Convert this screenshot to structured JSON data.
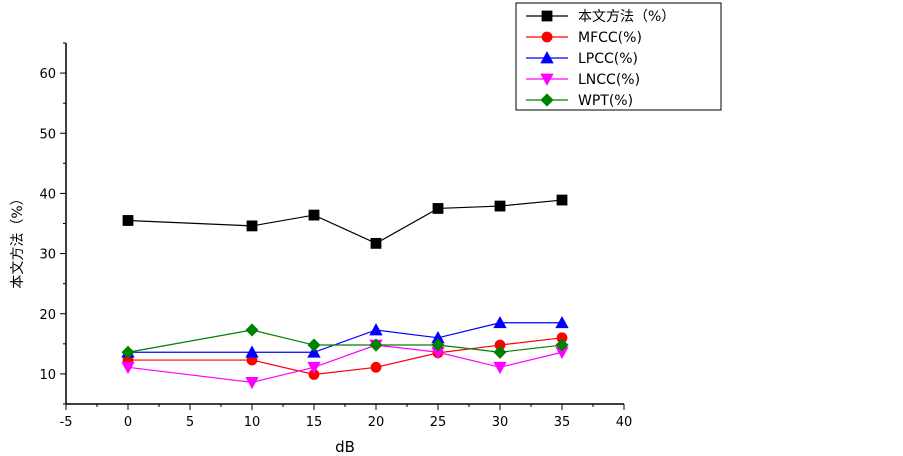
{
  "chart_data": {
    "type": "line",
    "title": "",
    "xlabel": "dB",
    "ylabel": "本文方法（%）",
    "xlim": [
      -5,
      40
    ],
    "ylim": [
      5,
      65
    ],
    "xticks": [
      -5,
      0,
      5,
      10,
      15,
      20,
      25,
      30,
      35,
      40
    ],
    "yticks": [
      10,
      20,
      30,
      40,
      50,
      60
    ],
    "grid": false,
    "legend_position": "top-right",
    "x": [
      0,
      10,
      15,
      20,
      25,
      30,
      35
    ],
    "series": [
      {
        "name": "本文方法（%）",
        "color": "#000000",
        "marker": "square",
        "values": [
          35.5,
          34.6,
          36.4,
          31.7,
          37.5,
          37.9,
          38.9
        ]
      },
      {
        "name": "MFCC(%)",
        "color": "#ff0000",
        "marker": "circle",
        "values": [
          12.3,
          12.3,
          9.9,
          11.1,
          13.5,
          14.8,
          16.0
        ]
      },
      {
        "name": "LPCC(%)",
        "color": "#0000ff",
        "marker": "triangle-up",
        "values": [
          13.6,
          13.6,
          13.6,
          17.3,
          16.0,
          18.5,
          18.5
        ]
      },
      {
        "name": "LNCC(%)",
        "color": "#ff00ff",
        "marker": "triangle-down",
        "values": [
          11.1,
          8.6,
          11.1,
          14.8,
          13.6,
          11.1,
          13.6
        ]
      },
      {
        "name": "WPT(%)",
        "color": "#008000",
        "marker": "diamond",
        "values": [
          13.6,
          17.3,
          14.8,
          14.8,
          14.8,
          13.6,
          14.8
        ]
      }
    ]
  }
}
